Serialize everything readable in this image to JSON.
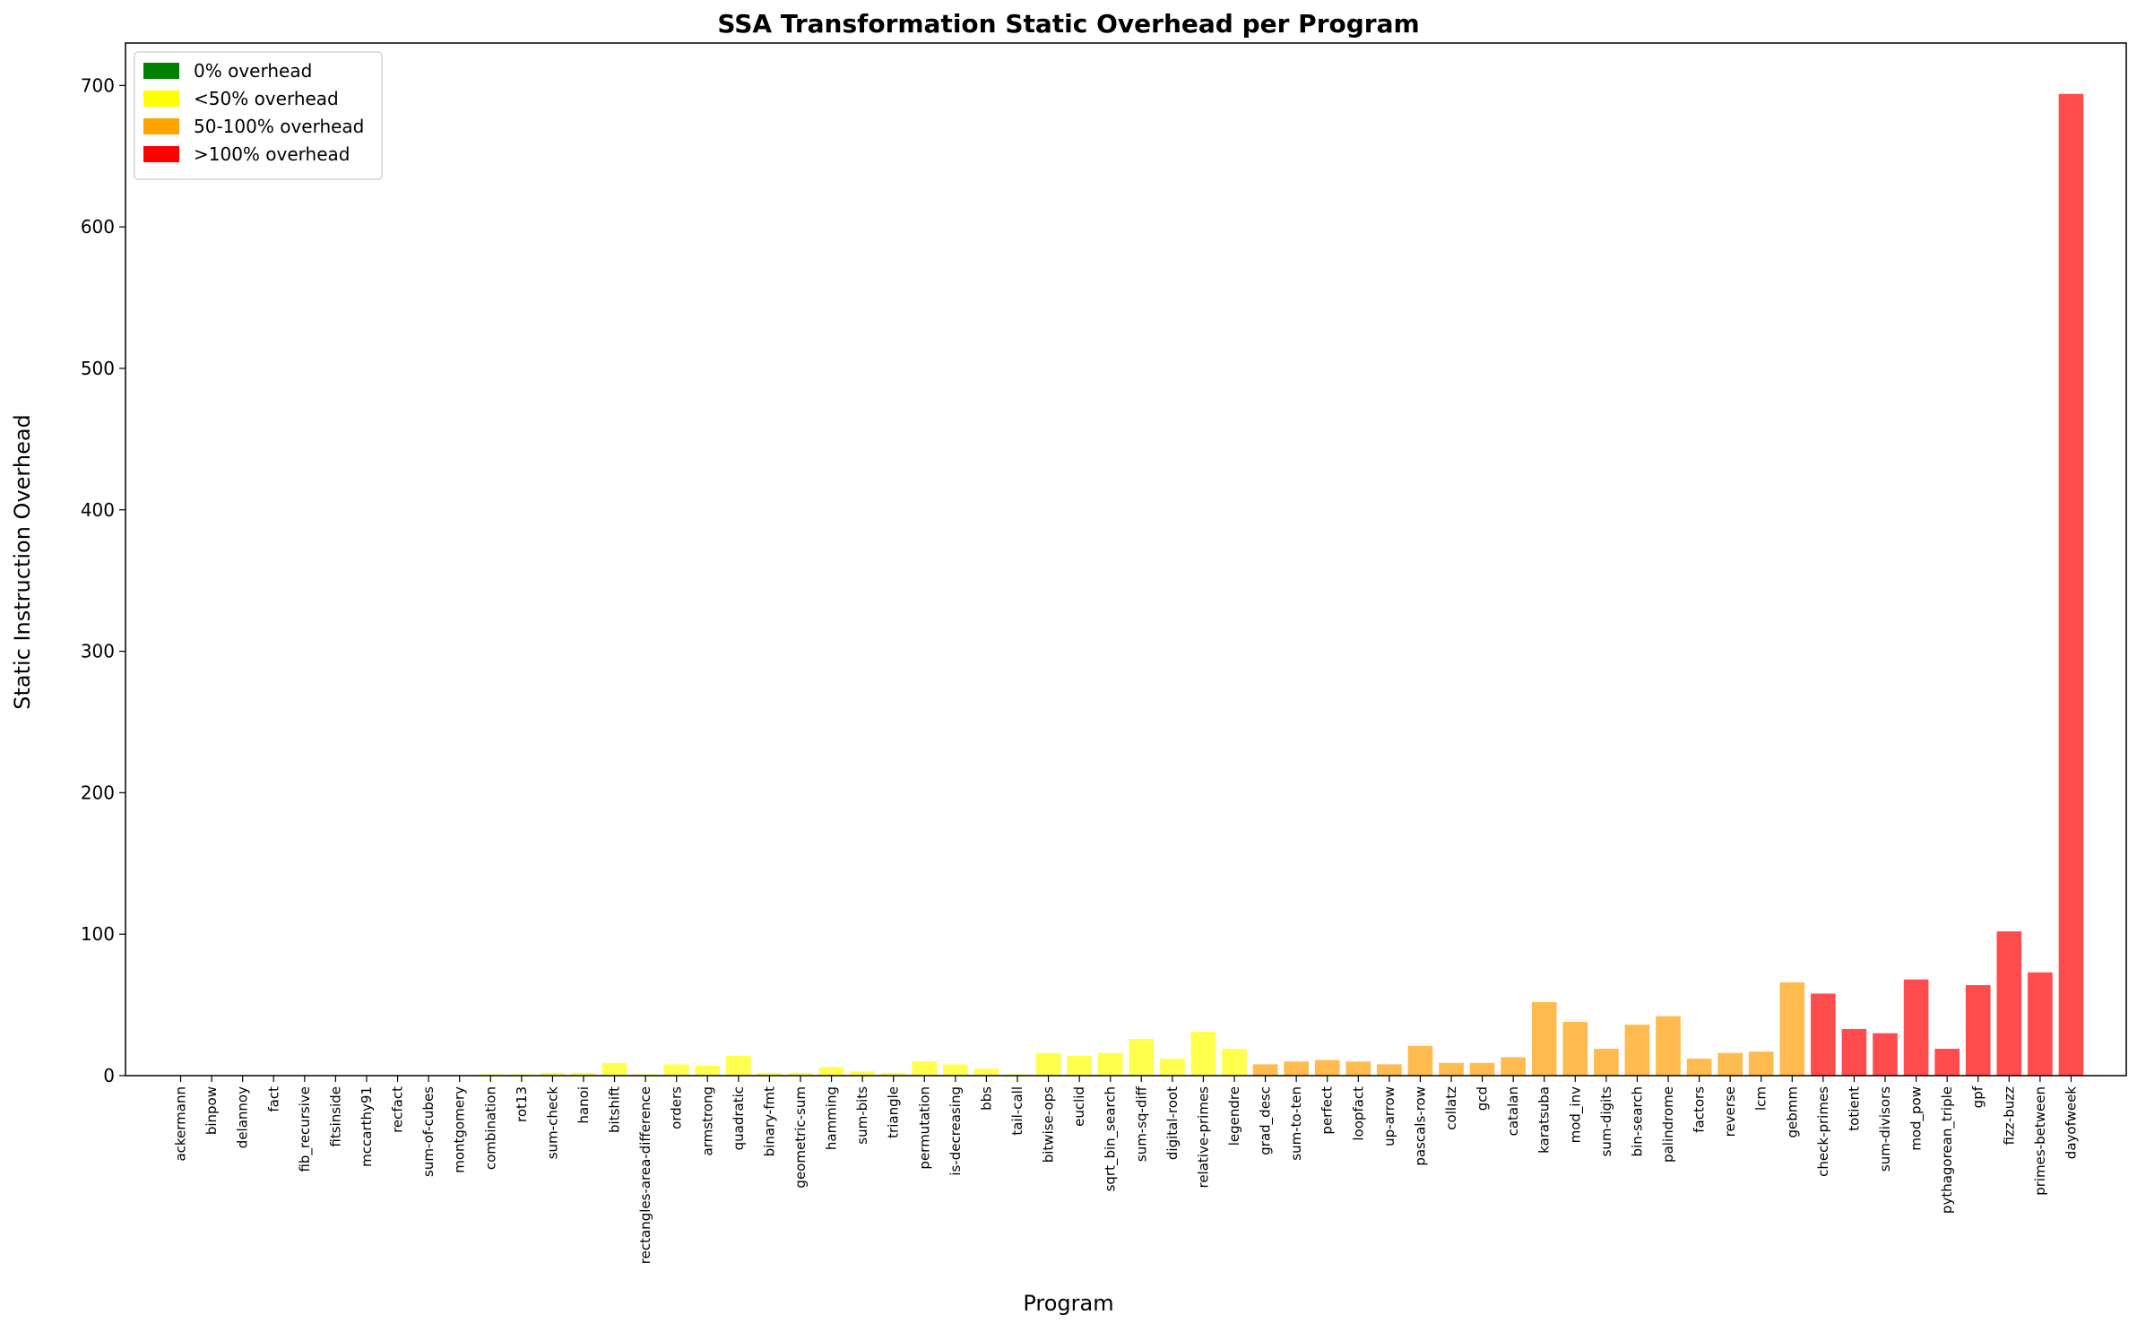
{
  "chart_data": {
    "type": "bar",
    "title": "SSA Transformation Static Overhead per Program",
    "xlabel": "Program",
    "ylabel": "Static Instruction Overhead",
    "ylim": [
      0,
      730
    ],
    "yticks": [
      0,
      100,
      200,
      300,
      400,
      500,
      600,
      700
    ],
    "grid": false,
    "legend_position": "top-left",
    "legend": [
      {
        "label": "0% overhead",
        "color": "#008000"
      },
      {
        "label": "<50% overhead",
        "color": "#ffff00"
      },
      {
        "label": "50-100% overhead",
        "color": "#ffa500"
      },
      {
        "label": ">100% overhead",
        "color": "#ff0000"
      }
    ],
    "bar_colors": {
      "0": "#7fbf7f",
      "1": "#ffff4d",
      "2": "#ffbb4d",
      "3": "#ff4d4d"
    },
    "categories": [
      "ackermann",
      "binpow",
      "delannoy",
      "fact",
      "fib_recursive",
      "fitsinside",
      "mccarthy91",
      "recfact",
      "sum-of-cubes",
      "montgomery",
      "combination",
      "rot13",
      "sum-check",
      "hanoi",
      "bitshift",
      "rectangles-area-difference",
      "orders",
      "armstrong",
      "quadratic",
      "binary-fmt",
      "geometric-sum",
      "hamming",
      "sum-bits",
      "triangle",
      "permutation",
      "is-decreasing",
      "bbs",
      "tail-call",
      "bitwise-ops",
      "euclid",
      "sqrt_bin_search",
      "sum-sq-diff",
      "digital-root",
      "relative-primes",
      "legendre",
      "grad_desc",
      "sum-to-ten",
      "perfect",
      "loopfact",
      "up-arrow",
      "pascals-row",
      "collatz",
      "gcd",
      "catalan",
      "karatsuba",
      "mod_inv",
      "sum-digits",
      "bin-search",
      "palindrome",
      "factors",
      "reverse",
      "lcm",
      "gebmm",
      "check-primes",
      "totient",
      "sum-divisors",
      "mod_pow",
      "pythagorean_triple",
      "gpf",
      "fizz-buzz",
      "primes-between",
      "dayofweek"
    ],
    "values": [
      0,
      0,
      0,
      0,
      0,
      0,
      0,
      0,
      0,
      0,
      1,
      1,
      2,
      2,
      9,
      1,
      8,
      7,
      14,
      2,
      2,
      6,
      3,
      2,
      10,
      8,
      5,
      1,
      16,
      14,
      16,
      26,
      12,
      31,
      19,
      8,
      10,
      11,
      10,
      8,
      21,
      9,
      9,
      13,
      52,
      38,
      19,
      36,
      42,
      12,
      16,
      17,
      66,
      58,
      33,
      30,
      68,
      19,
      64,
      102,
      73,
      694
    ],
    "category_group": [
      0,
      0,
      0,
      0,
      0,
      0,
      0,
      0,
      0,
      0,
      1,
      1,
      1,
      1,
      1,
      1,
      1,
      1,
      1,
      1,
      1,
      1,
      1,
      1,
      1,
      1,
      1,
      1,
      1,
      1,
      1,
      1,
      1,
      1,
      1,
      2,
      2,
      2,
      2,
      2,
      2,
      2,
      2,
      2,
      2,
      2,
      2,
      2,
      2,
      2,
      2,
      2,
      2,
      3,
      3,
      3,
      3,
      3,
      3,
      3,
      3,
      3
    ]
  }
}
